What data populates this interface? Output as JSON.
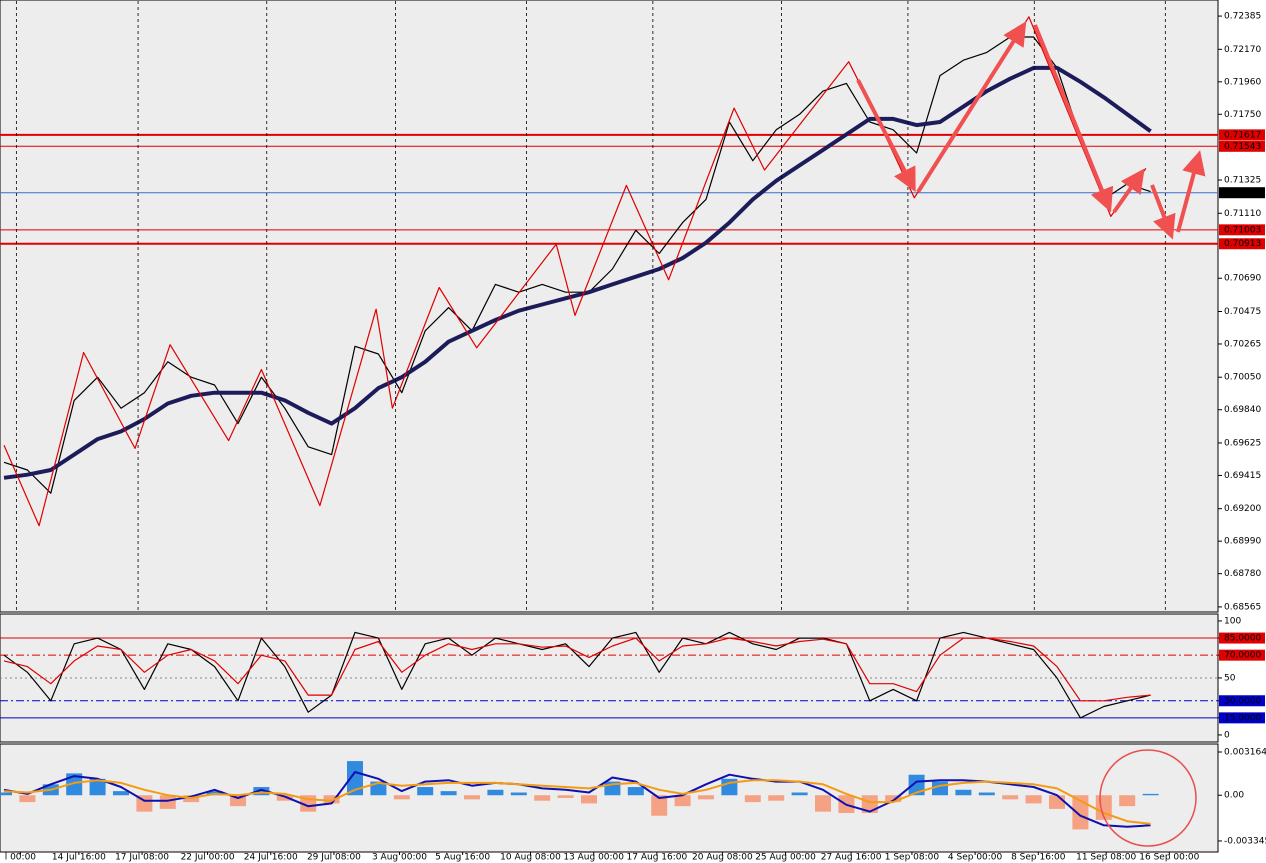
{
  "chart_data": [
    {
      "type": "line",
      "ylim": [
        0.68545,
        0.72476
      ],
      "yticks": [
        0.72385,
        {
          "value": 0.7217,
          "label": "0.72170"
        },
        {
          "value": 0.7196,
          "label": "0.71960"
        },
        {
          "value": 0.7175,
          "label": "0.71750"
        },
        0.71325,
        {
          "value": 0.7111,
          "label": "0.71110"
        },
        {
          "value": 0.7069,
          "label": "0.70690"
        },
        0.70475,
        0.70265,
        {
          "value": 0.7005,
          "label": "0.70050"
        },
        {
          "value": 0.6984,
          "label": "0.69840"
        },
        0.69625,
        0.69415,
        {
          "value": 0.692,
          "label": "0.69200"
        },
        {
          "value": 0.6899,
          "label": "0.68990"
        },
        {
          "value": 0.6878,
          "label": "0.68780"
        },
        0.68565
      ],
      "levels": [
        0.71617,
        0.71543,
        0.71243,
        0.71003,
        0.70913
      ],
      "level_colors": [
        "#e00000",
        "#e00000",
        "#3a6fd0",
        "#e00000",
        "#e00000"
      ],
      "level_label_colors": [
        "#e00000",
        "#e00000",
        "#000000",
        "#e00000",
        "#e00000"
      ],
      "series": [
        {
          "color": "#000000",
          "values": [
            0.695,
            0.6945,
            0.693,
            0.699,
            0.7005,
            0.6985,
            0.6995,
            0.7015,
            0.7005,
            0.7,
            0.6975,
            0.7005,
            0.6985,
            0.696,
            0.6955,
            0.7025,
            0.702,
            0.6995,
            0.7035,
            0.705,
            0.7035,
            0.7065,
            0.706,
            0.7065,
            0.706,
            0.706,
            0.7075,
            0.71,
            0.7085,
            0.7105,
            0.712,
            0.717,
            0.7145,
            0.7165,
            0.7175,
            0.719,
            0.7195,
            0.717,
            0.7165,
            0.715,
            0.72,
            0.721,
            0.7215,
            0.7225,
            0.7225,
            0.7205,
            0.716,
            0.712,
            0.713,
            0.7125
          ]
        },
        {
          "color": "#1c1c5a",
          "values": [
            0.694,
            0.6942,
            0.6945,
            0.6955,
            0.6965,
            0.697,
            0.6978,
            0.6988,
            0.6993,
            0.6995,
            0.6995,
            0.6995,
            0.699,
            0.6982,
            0.6975,
            0.6985,
            0.6998,
            0.7005,
            0.7015,
            0.7028,
            0.7035,
            0.7042,
            0.7048,
            0.7052,
            0.7056,
            0.706,
            0.7065,
            0.707,
            0.7075,
            0.7082,
            0.7092,
            0.7105,
            0.712,
            0.7132,
            0.7142,
            0.7152,
            0.7162,
            0.7172,
            0.7172,
            0.7168,
            0.717,
            0.718,
            0.719,
            0.7198,
            0.7205,
            0.7205,
            0.7196,
            0.7186,
            0.7175,
            0.7164
          ]
        },
        {
          "color": "#e00000",
          "x": [
            0,
            1.5,
            3.4,
            5.6,
            7.1,
            9.6,
            11,
            13.5,
            15.9,
            16.6,
            18.6,
            20.2,
            23.6,
            24.4,
            26.6,
            28.4,
            31.2,
            32.5,
            36.1,
            37.2,
            38.9,
            43.8,
            47.3,
            48.8
          ],
          "values": [
            0.6961,
            0.6909,
            0.7021,
            0.6959,
            0.7026,
            0.6964,
            0.701,
            0.6922,
            0.7049,
            0.6985,
            0.7063,
            0.7024,
            0.7091,
            0.7045,
            0.7129,
            0.7068,
            0.7179,
            0.7139,
            0.7209,
            0.7176,
            0.7121,
            0.7238,
            0.7109,
            0.714
          ]
        }
      ]
    },
    {
      "type": "line",
      "ylim": [
        -5.3,
        106.1
      ],
      "yticks": [
        100,
        {
          "value": 85,
          "label": "85.0000"
        },
        {
          "value": 70,
          "label": "70.0000"
        },
        50,
        {
          "value": 30,
          "label": "30.0000"
        },
        {
          "value": 15,
          "label": "15.0000"
        },
        0
      ],
      "tick_colors": [
        null,
        "#e00000",
        "#e00000",
        null,
        "#0000c8",
        "#0000c8",
        null
      ],
      "levels": [
        85,
        70,
        50,
        30,
        15
      ],
      "level_colors": [
        "#e00000",
        "#e00000",
        "#888888",
        "#0000c8",
        "#0000c8"
      ],
      "level_dash": [
        "",
        "8 3 2 3",
        "2 3",
        "8 3 2 3",
        ""
      ],
      "series": [
        {
          "color": "#000000",
          "values": [
            70,
            55,
            30,
            80,
            85,
            75,
            40,
            80,
            75,
            60,
            30,
            85,
            60,
            20,
            35,
            90,
            85,
            40,
            80,
            85,
            70,
            85,
            80,
            75,
            80,
            60,
            85,
            90,
            55,
            85,
            80,
            90,
            80,
            75,
            85,
            85,
            80,
            30,
            40,
            30,
            85,
            90,
            85,
            80,
            75,
            50,
            15,
            25,
            30,
            35
          ]
        },
        {
          "color": "#e00000",
          "values": [
            65,
            60,
            45,
            65,
            78,
            75,
            55,
            70,
            75,
            65,
            45,
            70,
            65,
            35,
            35,
            75,
            82,
            55,
            70,
            80,
            75,
            80,
            80,
            77,
            78,
            68,
            78,
            85,
            65,
            78,
            80,
            85,
            82,
            78,
            82,
            84,
            80,
            45,
            45,
            38,
            70,
            85,
            85,
            82,
            78,
            60,
            30,
            30,
            33,
            35
          ]
        }
      ]
    },
    {
      "type": "bar",
      "ylim": [
        -0.00408,
        0.00375
      ],
      "yticks": [
        0.0031642,
        {
          "value": 0,
          "label": "0.00"
        },
        -0.003345
      ],
      "color": "#2f8ae0",
      "negative_color": "#f4a283",
      "values": [
        0.0002,
        -0.0005,
        0.0008,
        0.0016,
        0.0012,
        0.0003,
        -0.0012,
        -0.001,
        -0.0005,
        0.0003,
        -0.0008,
        0.0006,
        -0.0004,
        -0.0012,
        -0.0006,
        0.0025,
        0.001,
        -0.0003,
        0.0006,
        0.0003,
        -0.0003,
        0.0004,
        0.0002,
        -0.0004,
        -0.0002,
        -0.0006,
        0.001,
        0.0006,
        -0.0015,
        -0.0008,
        -0.0003,
        0.0012,
        -0.0005,
        -0.0004,
        0.0002,
        -0.0012,
        -0.0013,
        -0.0013,
        -0.0005,
        0.0015,
        0.001,
        0.0004,
        0.0002,
        -0.0003,
        -0.0006,
        -0.001,
        -0.0025,
        -0.0018,
        -0.0008,
        0.0001
      ],
      "series": [
        {
          "color": "#1010b0",
          "values": [
            0.0004,
            0.0001,
            0.0008,
            0.0014,
            0.0012,
            0.0006,
            -0.0004,
            -0.0004,
            -0.0001,
            0.0004,
            -0.0002,
            0.0004,
            -0.0001,
            -0.0008,
            -0.0006,
            0.0017,
            0.0012,
            0.0003,
            0.001,
            0.0011,
            0.0007,
            0.0009,
            0.0008,
            0.0005,
            0.0004,
            0.0002,
            0.0013,
            0.001,
            -0.0002,
            0,
            0.0008,
            0.0015,
            0.0012,
            0.001,
            0.001,
            0.0004,
            -0.0007,
            -0.0012,
            -0.0004,
            0.001,
            0.0011,
            0.0011,
            0.001,
            0.0008,
            0.0006,
            0,
            -0.0015,
            -0.0022,
            -0.0023,
            -0.0022
          ]
        },
        {
          "color": "#f39c12",
          "values": [
            0.0003,
            0.0002,
            0.0004,
            0.0009,
            0.0011,
            0.0009,
            0.0004,
            0,
            -0.0002,
            0.0001,
            0,
            0.0002,
            0.0001,
            -0.0003,
            -0.0004,
            0.0004,
            0.0009,
            0.0007,
            0.0008,
            0.0009,
            0.0009,
            0.0009,
            0.0008,
            0.0007,
            0.0006,
            0.0005,
            0.0008,
            0.0009,
            0.0004,
            0.0001,
            0.0004,
            0.0009,
            0.0011,
            0.0011,
            0.001,
            0.0008,
            0.0001,
            -0.0005,
            -0.0005,
            0.0002,
            0.0007,
            0.0009,
            0.001,
            0.0009,
            0.0008,
            0.0005,
            -0.0004,
            -0.0013,
            -0.0019,
            -0.0021
          ]
        }
      ],
      "xticks": [
        {
          "value": 0.7,
          "label": "l 00:00"
        },
        {
          "value": 3.2,
          "label": "14 Jul 16:00"
        },
        {
          "value": 5.9,
          "label": "17 Jul 08:00"
        },
        {
          "value": 8.7,
          "label": "22 Jul 00:00"
        },
        {
          "value": 11.4,
          "label": "24 Jul 16:00"
        },
        {
          "value": 14.1,
          "label": "29 Jul 08:00"
        },
        {
          "value": 16.9,
          "label": "3 Aug 00:00"
        },
        {
          "value": 19.6,
          "label": "5 Aug 16:00"
        },
        {
          "value": 22.5,
          "label": "10 Aug 08:00"
        },
        {
          "value": 25.2,
          "label": "13 Aug 00:00"
        },
        {
          "value": 27.9,
          "label": "17 Aug 16:00"
        },
        {
          "value": 30.7,
          "label": "20 Aug 08:00"
        },
        {
          "value": 33.4,
          "label": "25 Aug 00:00"
        },
        {
          "value": 36.2,
          "label": "27 Aug 16:00"
        },
        {
          "value": 38.8,
          "label": "1 Sep 08:00"
        },
        {
          "value": 41.5,
          "label": "4 Sep 00:00"
        },
        {
          "value": 44.2,
          "label": "8 Sep 16:00"
        },
        {
          "value": 47.1,
          "label": "11 Sep 08:00"
        },
        {
          "value": 49.8,
          "label": "16 Sep 00:00"
        }
      ]
    }
  ]
}
